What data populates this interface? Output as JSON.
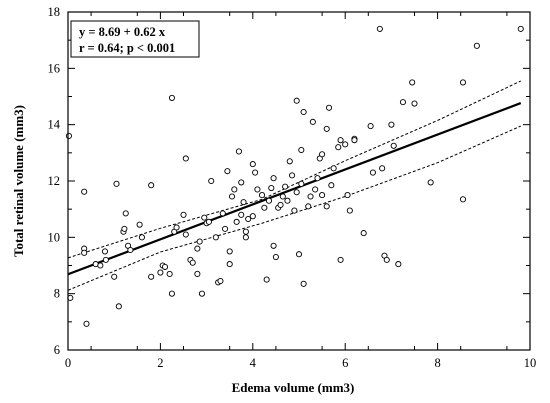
{
  "chart_data": {
    "type": "scatter",
    "xlabel": "Edema volume (mm3)",
    "ylabel": "Total retinal volume (mm3)",
    "xlim": [
      0,
      10
    ],
    "ylim": [
      6,
      18
    ],
    "x_ticks": [
      0,
      2,
      4,
      6,
      8,
      10
    ],
    "y_ticks": [
      6,
      8,
      10,
      12,
      14,
      16,
      18
    ],
    "grid": false,
    "annotation": {
      "line1": "y = 8.69  +  0.62  x",
      "line2": "r = 0.64; p < 0.001"
    },
    "regression": {
      "intercept": 8.69,
      "slope": 0.62
    },
    "confidence_band": {
      "upper": [
        [
          0,
          9.27
        ],
        [
          2,
          10.32
        ],
        [
          4.2,
          11.35
        ],
        [
          6,
          12.72
        ],
        [
          8,
          14.15
        ],
        [
          9.8,
          15.55
        ]
      ],
      "lower": [
        [
          0,
          8.12
        ],
        [
          2,
          9.48
        ],
        [
          4.2,
          10.5
        ],
        [
          6,
          11.45
        ],
        [
          8,
          12.65
        ],
        [
          9.8,
          13.95
        ]
      ]
    },
    "points": [
      [
        0.02,
        13.6
      ],
      [
        0.05,
        7.85
      ],
      [
        0.35,
        11.62
      ],
      [
        0.35,
        9.6
      ],
      [
        0.35,
        9.45
      ],
      [
        0.4,
        6.93
      ],
      [
        0.6,
        9.05
      ],
      [
        0.7,
        9.0
      ],
      [
        0.8,
        9.5
      ],
      [
        0.82,
        9.2
      ],
      [
        1.0,
        8.6
      ],
      [
        1.05,
        11.9
      ],
      [
        1.1,
        7.55
      ],
      [
        1.2,
        10.2
      ],
      [
        1.22,
        10.3
      ],
      [
        1.25,
        10.85
      ],
      [
        1.3,
        9.7
      ],
      [
        1.35,
        9.55
      ],
      [
        1.55,
        10.45
      ],
      [
        1.6,
        10.0
      ],
      [
        1.8,
        11.85
      ],
      [
        1.8,
        8.6
      ],
      [
        2.0,
        8.75
      ],
      [
        2.05,
        9.0
      ],
      [
        2.1,
        8.95
      ],
      [
        2.2,
        8.7
      ],
      [
        2.25,
        14.95
      ],
      [
        2.25,
        8.0
      ],
      [
        2.3,
        10.2
      ],
      [
        2.35,
        10.35
      ],
      [
        2.5,
        10.8
      ],
      [
        2.55,
        12.8
      ],
      [
        2.55,
        10.1
      ],
      [
        2.65,
        9.2
      ],
      [
        2.7,
        9.1
      ],
      [
        2.8,
        8.7
      ],
      [
        2.8,
        9.6
      ],
      [
        2.85,
        9.85
      ],
      [
        2.9,
        8.0
      ],
      [
        2.95,
        10.7
      ],
      [
        3.0,
        10.5
      ],
      [
        3.05,
        10.55
      ],
      [
        3.1,
        12.0
      ],
      [
        3.2,
        10.0
      ],
      [
        3.25,
        8.4
      ],
      [
        3.3,
        8.45
      ],
      [
        3.35,
        10.85
      ],
      [
        3.4,
        10.3
      ],
      [
        3.45,
        12.35
      ],
      [
        3.5,
        9.05
      ],
      [
        3.5,
        9.5
      ],
      [
        3.55,
        11.45
      ],
      [
        3.6,
        11.7
      ],
      [
        3.65,
        10.55
      ],
      [
        3.7,
        13.05
      ],
      [
        3.75,
        11.95
      ],
      [
        3.75,
        10.8
      ],
      [
        3.8,
        11.25
      ],
      [
        3.85,
        10.2
      ],
      [
        3.85,
        10.0
      ],
      [
        3.9,
        10.65
      ],
      [
        4.0,
        12.6
      ],
      [
        4.0,
        10.75
      ],
      [
        4.05,
        12.3
      ],
      [
        4.1,
        11.7
      ],
      [
        4.2,
        11.5
      ],
      [
        4.25,
        11.05
      ],
      [
        4.3,
        8.5
      ],
      [
        4.35,
        11.3
      ],
      [
        4.4,
        11.75
      ],
      [
        4.45,
        12.1
      ],
      [
        4.45,
        9.7
      ],
      [
        4.5,
        9.3
      ],
      [
        4.55,
        11.05
      ],
      [
        4.6,
        11.15
      ],
      [
        4.65,
        11.45
      ],
      [
        4.7,
        11.8
      ],
      [
        4.75,
        11.3
      ],
      [
        4.8,
        12.7
      ],
      [
        4.85,
        12.2
      ],
      [
        4.9,
        10.95
      ],
      [
        4.95,
        14.85
      ],
      [
        4.95,
        11.6
      ],
      [
        5.0,
        9.4
      ],
      [
        5.05,
        11.9
      ],
      [
        5.05,
        13.1
      ],
      [
        5.1,
        14.45
      ],
      [
        5.1,
        8.35
      ],
      [
        5.2,
        11.1
      ],
      [
        5.25,
        11.45
      ],
      [
        5.3,
        14.1
      ],
      [
        5.35,
        11.7
      ],
      [
        5.4,
        12.1
      ],
      [
        5.45,
        12.8
      ],
      [
        5.5,
        11.5
      ],
      [
        5.5,
        12.95
      ],
      [
        5.6,
        11.1
      ],
      [
        5.6,
        13.85
      ],
      [
        5.65,
        14.6
      ],
      [
        5.7,
        11.85
      ],
      [
        5.75,
        12.45
      ],
      [
        5.85,
        13.2
      ],
      [
        5.9,
        13.45
      ],
      [
        5.9,
        9.2
      ],
      [
        6.0,
        13.3
      ],
      [
        6.05,
        11.5
      ],
      [
        6.1,
        10.95
      ],
      [
        6.2,
        13.5
      ],
      [
        6.2,
        13.45
      ],
      [
        6.4,
        10.15
      ],
      [
        6.55,
        13.95
      ],
      [
        6.6,
        12.3
      ],
      [
        6.75,
        17.4
      ],
      [
        6.8,
        12.45
      ],
      [
        6.85,
        9.35
      ],
      [
        6.9,
        9.2
      ],
      [
        7.0,
        14.0
      ],
      [
        7.05,
        13.25
      ],
      [
        7.15,
        9.05
      ],
      [
        7.25,
        14.8
      ],
      [
        7.45,
        15.5
      ],
      [
        7.5,
        14.75
      ],
      [
        7.85,
        11.95
      ],
      [
        8.55,
        15.5
      ],
      [
        8.55,
        11.35
      ],
      [
        8.85,
        16.8
      ],
      [
        9.8,
        17.4
      ]
    ]
  }
}
